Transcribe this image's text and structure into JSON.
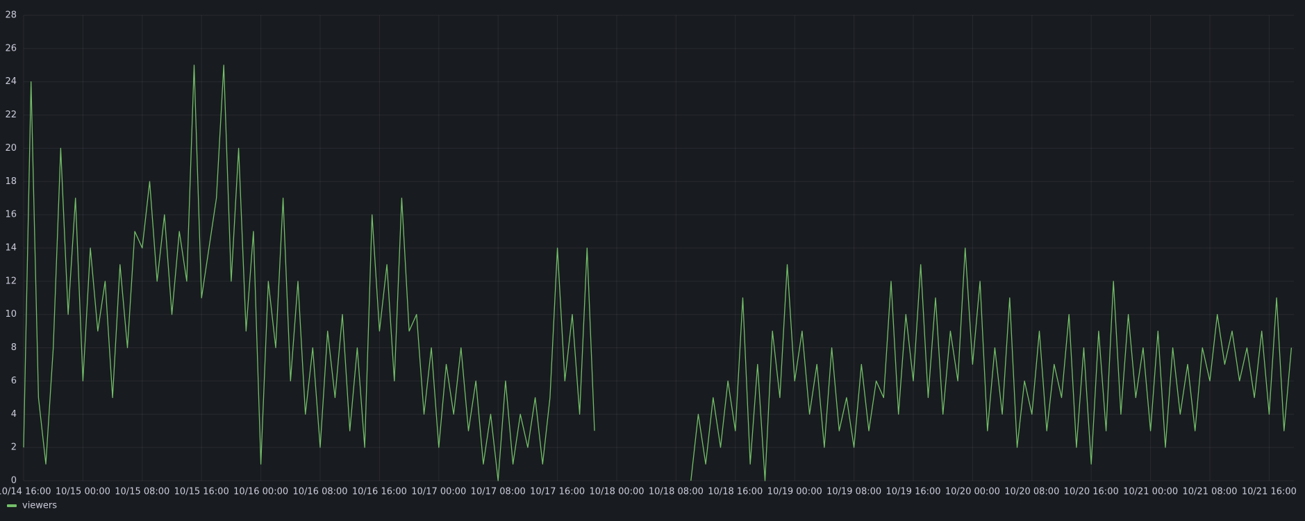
{
  "chart_data": {
    "type": "line",
    "x": [
      "10/14 16:00",
      "10/14 17:00",
      "10/14 18:00",
      "10/14 19:00",
      "10/14 20:00",
      "10/14 21:00",
      "10/14 22:00",
      "10/14 23:00",
      "10/15 00:00",
      "10/15 01:00",
      "10/15 02:00",
      "10/15 03:00",
      "10/15 04:00",
      "10/15 05:00",
      "10/15 06:00",
      "10/15 07:00",
      "10/15 08:00",
      "10/15 09:00",
      "10/15 10:00",
      "10/15 11:00",
      "10/15 12:00",
      "10/15 13:00",
      "10/15 14:00",
      "10/15 15:00",
      "10/15 16:00",
      "10/15 17:00",
      "10/15 18:00",
      "10/15 19:00",
      "10/15 20:00",
      "10/15 21:00",
      "10/15 22:00",
      "10/15 23:00",
      "10/16 00:00",
      "10/16 01:00",
      "10/16 02:00",
      "10/16 03:00",
      "10/16 04:00",
      "10/16 05:00",
      "10/16 06:00",
      "10/16 07:00",
      "10/16 08:00",
      "10/16 09:00",
      "10/16 10:00",
      "10/16 11:00",
      "10/16 12:00",
      "10/16 13:00",
      "10/16 14:00",
      "10/16 15:00",
      "10/16 16:00",
      "10/16 17:00",
      "10/16 18:00",
      "10/16 19:00",
      "10/16 20:00",
      "10/16 21:00",
      "10/16 22:00",
      "10/16 23:00",
      "10/17 00:00",
      "10/17 01:00",
      "10/17 02:00",
      "10/17 03:00",
      "10/17 04:00",
      "10/17 05:00",
      "10/17 06:00",
      "10/17 07:00",
      "10/17 08:00",
      "10/17 09:00",
      "10/17 10:00",
      "10/17 11:00",
      "10/17 12:00",
      "10/17 13:00",
      "10/17 14:00",
      "10/17 15:00",
      "10/17 16:00",
      "10/17 17:00",
      "10/17 18:00",
      "10/17 19:00",
      "10/17 20:00",
      "10/17 21:00",
      "10/18 00:00",
      "10/18 10:00",
      "10/18 11:00",
      "10/18 12:00",
      "10/18 13:00",
      "10/18 14:00",
      "10/18 15:00",
      "10/18 16:00",
      "10/18 17:00",
      "10/18 18:00",
      "10/18 19:00",
      "10/18 20:00",
      "10/18 21:00",
      "10/18 22:00",
      "10/18 23:00",
      "10/19 00:00",
      "10/19 01:00",
      "10/19 02:00",
      "10/19 03:00",
      "10/19 04:00",
      "10/19 05:00",
      "10/19 06:00",
      "10/19 07:00",
      "10/19 08:00",
      "10/19 09:00",
      "10/19 10:00",
      "10/19 11:00",
      "10/19 12:00",
      "10/19 13:00",
      "10/19 14:00",
      "10/19 15:00",
      "10/19 16:00",
      "10/19 17:00",
      "10/19 18:00",
      "10/19 19:00",
      "10/19 20:00",
      "10/19 21:00",
      "10/19 22:00",
      "10/19 23:00",
      "10/20 00:00",
      "10/20 01:00",
      "10/20 02:00",
      "10/20 03:00",
      "10/20 04:00",
      "10/20 05:00",
      "10/20 06:00",
      "10/20 07:00",
      "10/20 08:00",
      "10/20 09:00",
      "10/20 10:00",
      "10/20 11:00",
      "10/20 12:00",
      "10/20 13:00",
      "10/20 14:00",
      "10/20 15:00",
      "10/20 16:00",
      "10/20 17:00",
      "10/20 18:00",
      "10/20 19:00",
      "10/20 20:00",
      "10/20 21:00",
      "10/20 22:00",
      "10/20 23:00",
      "10/21 00:00",
      "10/21 01:00",
      "10/21 02:00",
      "10/21 03:00",
      "10/21 04:00",
      "10/21 05:00",
      "10/21 06:00",
      "10/21 07:00",
      "10/21 08:00",
      "10/21 09:00",
      "10/21 10:00",
      "10/21 11:00",
      "10/21 12:00",
      "10/21 13:00",
      "10/21 14:00",
      "10/21 15:00",
      "10/21 16:00",
      "10/21 17:00",
      "10/21 18:00",
      "10/21 19:00"
    ],
    "series": [
      {
        "name": "viewers",
        "color": "#73bf69",
        "values": [
          2,
          24,
          5,
          1,
          8,
          20,
          10,
          17,
          6,
          14,
          9,
          12,
          5,
          13,
          8,
          15,
          14,
          18,
          12,
          16,
          10,
          15,
          12,
          25,
          11,
          14,
          17,
          25,
          12,
          20,
          9,
          15,
          1,
          12,
          8,
          17,
          6,
          12,
          4,
          8,
          2,
          9,
          5,
          10,
          3,
          8,
          2,
          16,
          9,
          13,
          6,
          17,
          9,
          10,
          4,
          8,
          2,
          7,
          4,
          8,
          3,
          6,
          1,
          4,
          0,
          6,
          1,
          4,
          2,
          5,
          1,
          5,
          14,
          6,
          10,
          4,
          14,
          3,
          null,
          0,
          4,
          1,
          5,
          2,
          6,
          3,
          11,
          1,
          7,
          0,
          9,
          5,
          13,
          6,
          9,
          4,
          7,
          2,
          8,
          3,
          5,
          2,
          7,
          3,
          6,
          5,
          12,
          4,
          10,
          6,
          13,
          5,
          11,
          4,
          9,
          6,
          14,
          7,
          12,
          3,
          8,
          4,
          11,
          2,
          6,
          4,
          9,
          3,
          7,
          5,
          10,
          2,
          8,
          1,
          9,
          3,
          12,
          4,
          10,
          5,
          8,
          3,
          9,
          2,
          8,
          4,
          7,
          3,
          8,
          6,
          10,
          7,
          9,
          6,
          8,
          5,
          9,
          4,
          11,
          3,
          8
        ]
      }
    ],
    "xlim": [
      "10/14 16:00",
      "10/21 19:20"
    ],
    "xticks": [
      "10/14 16:00",
      "10/15 00:00",
      "10/15 08:00",
      "10/15 16:00",
      "10/16 00:00",
      "10/16 08:00",
      "10/16 16:00",
      "10/17 00:00",
      "10/17 08:00",
      "10/17 16:00",
      "10/18 00:00",
      "10/18 08:00",
      "10/18 16:00",
      "10/19 00:00",
      "10/19 08:00",
      "10/19 16:00",
      "10/20 00:00",
      "10/20 08:00",
      "10/20 16:00",
      "10/21 00:00",
      "10/21 08:00",
      "10/21 16:00"
    ],
    "ylim": [
      0,
      28
    ],
    "yticks": [
      0,
      2,
      4,
      6,
      8,
      10,
      12,
      14,
      16,
      18,
      20,
      22,
      24,
      26,
      28
    ],
    "grid": true,
    "legend": "bottom-left"
  }
}
